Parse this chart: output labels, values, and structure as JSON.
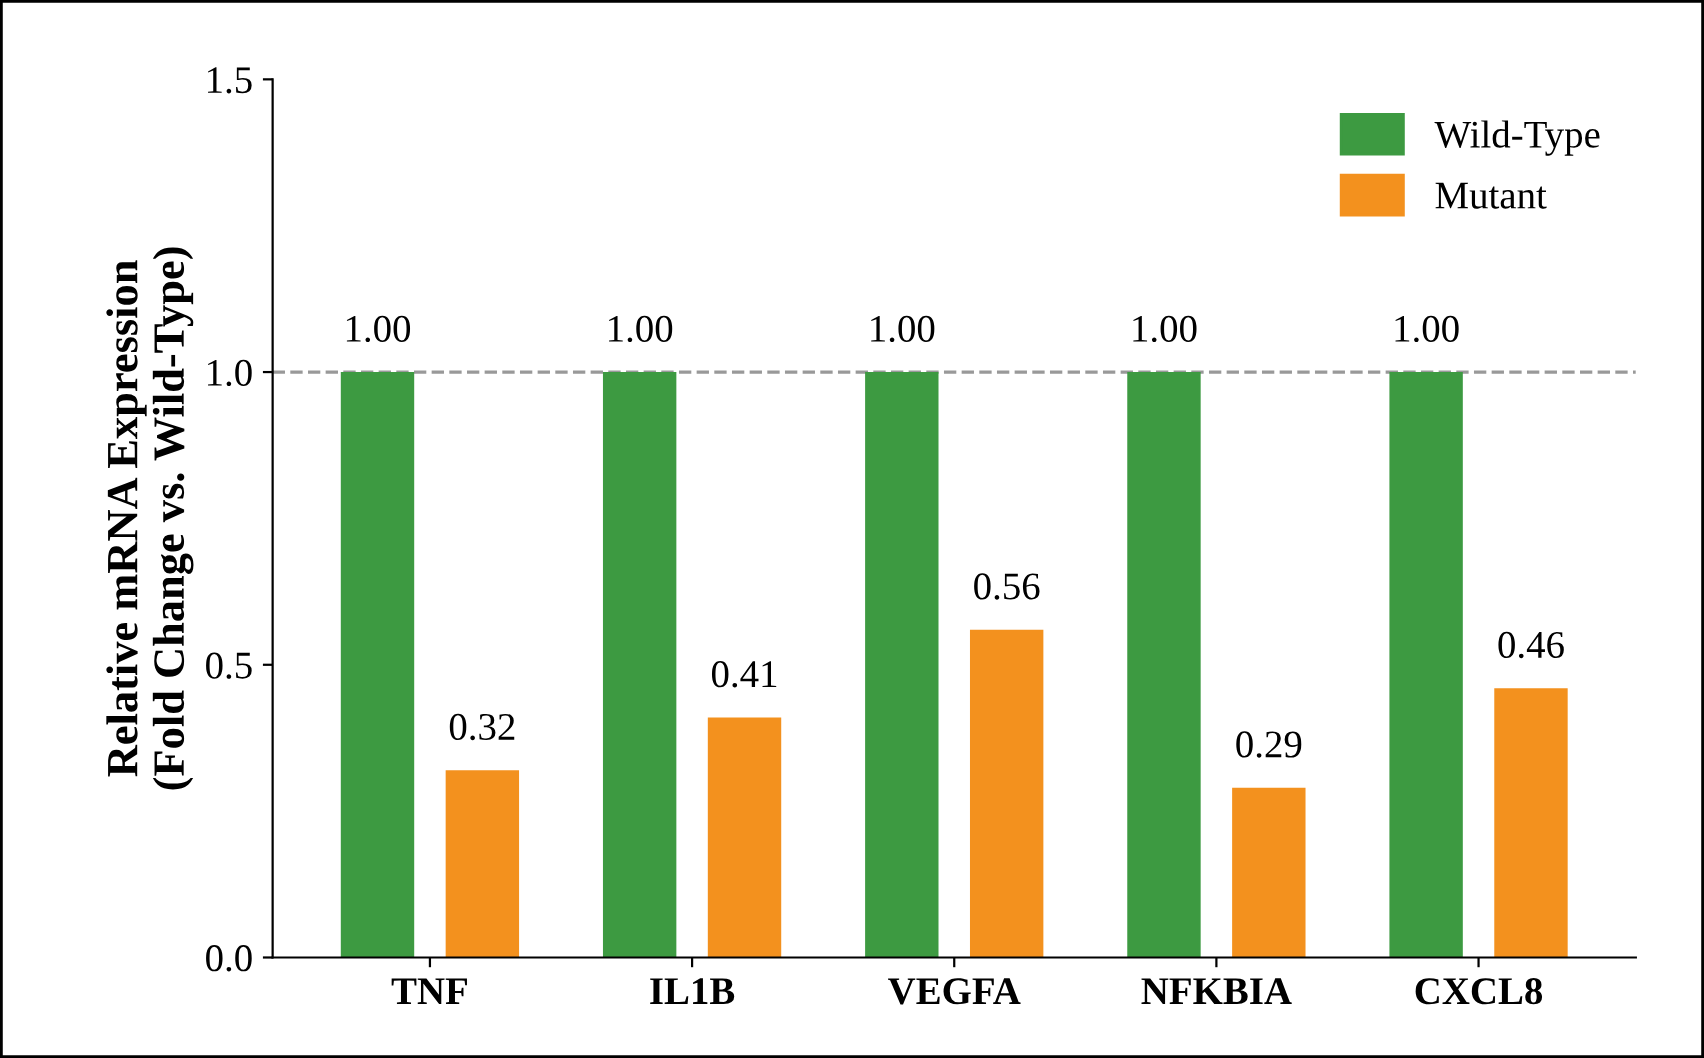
{
  "chart_data": {
    "type": "bar",
    "ylabel": "Relative mRNA Expression\n(Fold Change vs. Wild-Type)",
    "categories": [
      "TNF",
      "IL1B",
      "VEGFA",
      "NFKBIA",
      "CXCL8"
    ],
    "series": [
      {
        "name": "Wild-Type",
        "color": "#3d9a41",
        "values": [
          1.0,
          1.0,
          1.0,
          1.0,
          1.0
        ],
        "value_labels": [
          "1.00",
          "1.00",
          "1.00",
          "1.00",
          "1.00"
        ]
      },
      {
        "name": "Mutant",
        "color": "#f3911e",
        "values": [
          0.32,
          0.41,
          0.56,
          0.29,
          0.46
        ],
        "value_labels": [
          "0.32",
          "0.41",
          "0.56",
          "0.29",
          "0.46"
        ]
      }
    ],
    "ylim": [
      0,
      1.5
    ],
    "yticks": [
      {
        "value": 0,
        "label": "0.0"
      },
      {
        "value": 0.5,
        "label": "0.5"
      },
      {
        "value": 1.0,
        "label": "1.0"
      },
      {
        "value": 1.5,
        "label": "1.5"
      }
    ],
    "ref_lines": [
      {
        "axis": "y",
        "value": 1.0,
        "color": "#999999",
        "line_style": "dashed"
      }
    ],
    "grid": false,
    "legend": "top right"
  }
}
